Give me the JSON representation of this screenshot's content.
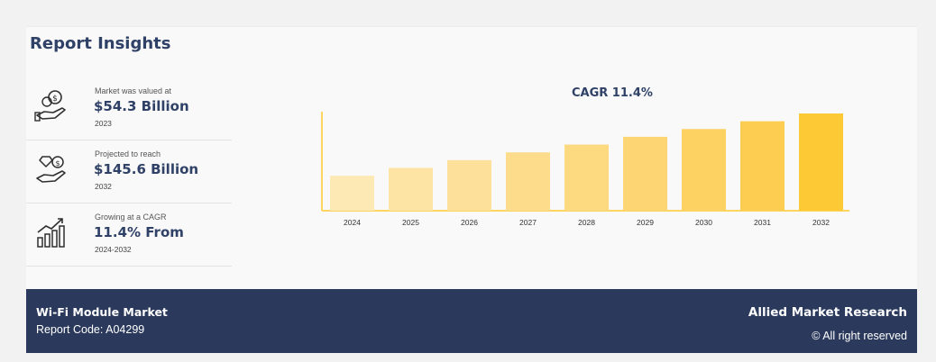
{
  "header": {
    "title": "Report Insights"
  },
  "stats": [
    {
      "icon": "money-hand-icon",
      "label": "Market was valued at",
      "value": "$54.3 Billion",
      "year": "2023"
    },
    {
      "icon": "diamond-hand-icon",
      "label": "Projected to reach",
      "value": "$145.6 Billion",
      "year": "2032"
    },
    {
      "icon": "growth-bars-icon",
      "label": "Growing at a CAGR",
      "value": "11.4% From",
      "year": "2024-2032"
    }
  ],
  "chart_data": {
    "type": "bar",
    "title": "CAGR 11.4%",
    "categories": [
      "2024",
      "2025",
      "2026",
      "2027",
      "2028",
      "2029",
      "2030",
      "2031",
      "2032"
    ],
    "values": [
      36,
      44,
      52,
      60,
      68,
      76,
      84,
      92,
      100
    ],
    "colors": [
      "#fde9b3",
      "#fde4a4",
      "#fde099",
      "#fddc8c",
      "#fdd980",
      "#fdd572",
      "#fdd263",
      "#fdcd51",
      "#fdc935"
    ],
    "axis_color": "#fdd560",
    "grid": false
  },
  "footer": {
    "market": "Wi-Fi Module Market",
    "report_code": "Report Code: A04299",
    "brand": "Allied Market Research",
    "rights": "© All right reserved"
  },
  "colors": {
    "navy": "#2b3a5c",
    "title": "#2f4166"
  }
}
